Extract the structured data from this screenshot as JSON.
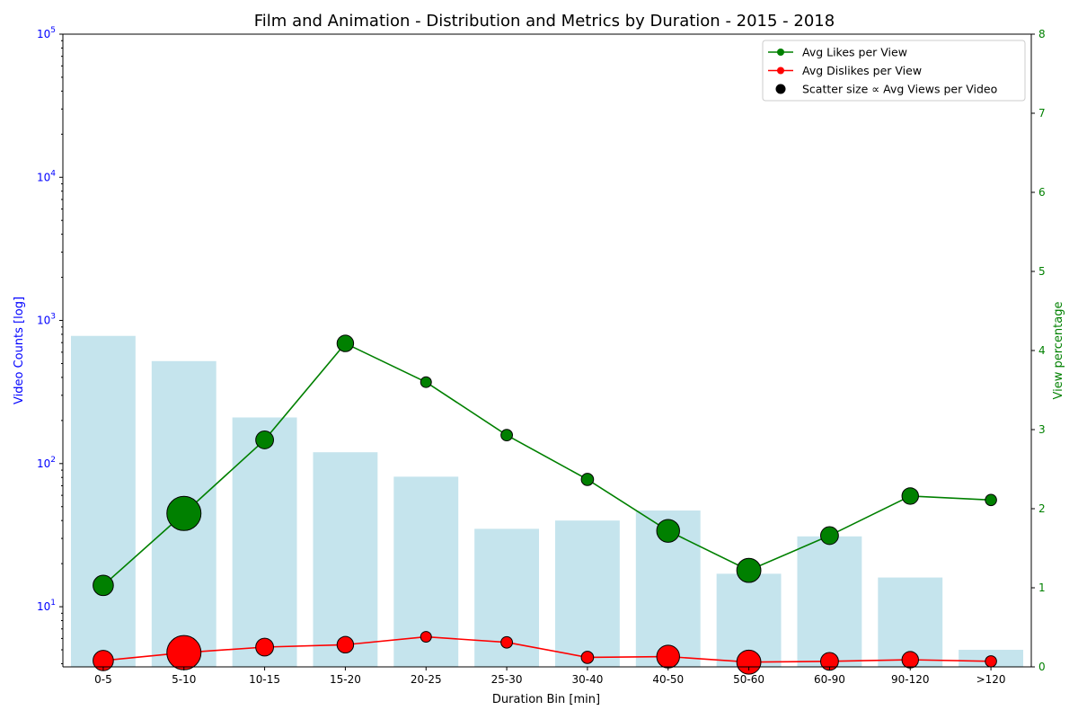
{
  "chart_data": {
    "type": "bar",
    "title": "Film and Animation - Distribution and Metrics by Duration - 2015 - 2018",
    "xlabel": "Duration Bin [min]",
    "ylabel": "Video Counts [log]",
    "y2label": "View percentage",
    "categories": [
      "0-5",
      "5-10",
      "10-15",
      "15-20",
      "20-25",
      "25-30",
      "30-40",
      "40-50",
      "50-60",
      "60-90",
      "90-120",
      ">120"
    ],
    "y_scale": "log",
    "ylim": [
      3.8,
      100000
    ],
    "y_ticks": [
      {
        "value": 10,
        "base": "10",
        "exp": "1"
      },
      {
        "value": 100,
        "base": "10",
        "exp": "2"
      },
      {
        "value": 1000,
        "base": "10",
        "exp": "3"
      },
      {
        "value": 10000,
        "base": "10",
        "exp": "4"
      },
      {
        "value": 100000,
        "base": "10",
        "exp": "5"
      }
    ],
    "y2lim": [
      0,
      8
    ],
    "y2_ticks": [
      "0",
      "1",
      "2",
      "3",
      "4",
      "5",
      "6",
      "7",
      "8"
    ],
    "grid": false,
    "legend_position": "top-right",
    "series": [
      {
        "name": "Video Counts",
        "kind": "bar",
        "color": "#add8e6",
        "values": [
          780,
          520,
          210,
          120,
          81,
          35,
          40,
          47,
          17,
          31,
          16,
          5
        ]
      },
      {
        "name": "Avg Likes per View",
        "kind": "line",
        "color": "#008000",
        "values": [
          1.03,
          1.94,
          2.87,
          4.09,
          3.6,
          2.93,
          2.37,
          1.72,
          1.22,
          1.66,
          2.16,
          2.11
        ]
      },
      {
        "name": "Avg Dislikes per View",
        "kind": "line",
        "color": "#ff0000",
        "values": [
          0.08,
          0.18,
          0.25,
          0.28,
          0.38,
          0.31,
          0.12,
          0.13,
          0.06,
          0.07,
          0.09,
          0.07
        ]
      }
    ],
    "scatter_size_relative": [
      0.45,
      1.0,
      0.35,
      0.3,
      0.07,
      0.1,
      0.13,
      0.55,
      0.6,
      0.35,
      0.3,
      0.09
    ],
    "legend": [
      {
        "label": "Avg Likes per View",
        "color": "#008000",
        "marker": "line-dot"
      },
      {
        "label": "Avg Dislikes per View",
        "color": "#ff0000",
        "marker": "line-dot"
      },
      {
        "label": "Scatter size ∝ Avg Views per Video",
        "color": "#000000",
        "marker": "dot"
      }
    ],
    "colors": {
      "left_axis": "#0000ff",
      "right_axis": "#008000",
      "bar": "#add8e6",
      "likes": "#008000",
      "dislikes": "#ff0000"
    }
  }
}
